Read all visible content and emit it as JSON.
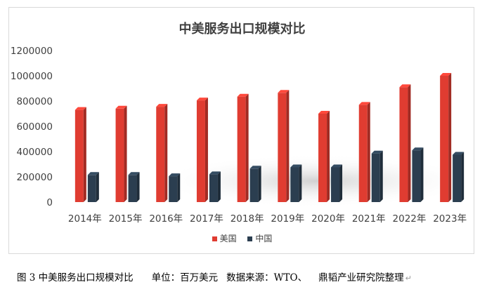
{
  "chart_data": {
    "type": "bar",
    "title": "中美服务出口规模对比",
    "categories": [
      "2014年",
      "2015年",
      "2016年",
      "2017年",
      "2018年",
      "2019年",
      "2020年",
      "2021年",
      "2022年",
      "2023年"
    ],
    "series": [
      {
        "name": "美国",
        "color": "#e03c31",
        "values": [
          730000,
          740000,
          755000,
          805000,
          835000,
          865000,
          700000,
          770000,
          910000,
          1000000
        ]
      },
      {
        "name": "中国",
        "color": "#2b3e50",
        "values": [
          215000,
          215000,
          205000,
          220000,
          265000,
          275000,
          275000,
          385000,
          410000,
          375000
        ]
      }
    ],
    "ylim": [
      0,
      1200000
    ],
    "yticks": [
      "0",
      "200000",
      "400000",
      "600000",
      "800000",
      "1000000",
      "1200000"
    ],
    "xlabel": "",
    "ylabel": "",
    "grid": false,
    "legend_position": "bottom"
  },
  "caption": {
    "figure": "图 3 中美服务出口规模对比",
    "unit": "单位：百万美元",
    "source": "数据来源：WTO、",
    "org": "鼎韬产业研究院整理",
    "mark": "↵"
  }
}
